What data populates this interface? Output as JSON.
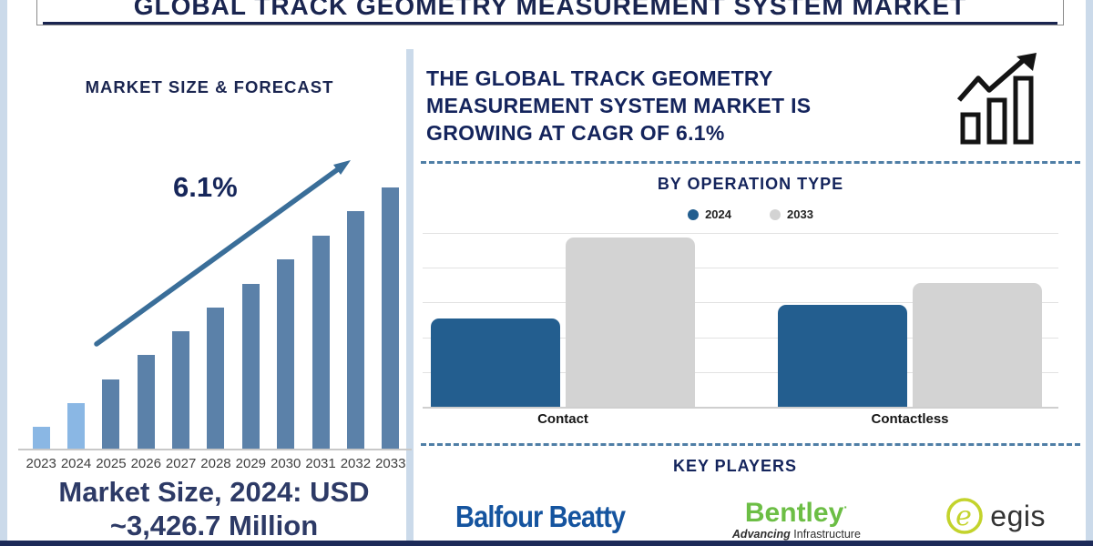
{
  "title_bar": {
    "title": "GLOBAL TRACK GEOMETRY MEASUREMENT SYSTEM MARKET"
  },
  "left_panel": {
    "heading": "MARKET SIZE & FORECAST",
    "cagr_annotation": "6.1%",
    "market_size_line1": "Market Size, 2024: USD",
    "market_size_line2": "~3,426.7 Million"
  },
  "right_panel": {
    "headline_lines": [
      "THE GLOBAL TRACK GEOMETRY",
      "MEASUREMENT SYSTEM MARKET IS",
      "GROWING AT CAGR OF 6.1%"
    ],
    "growth_icon": "growth-trend-bar-chart-icon",
    "operation_section_title": "BY OPERATION TYPE",
    "key_players_title": "KEY PLAYERS",
    "key_players": [
      {
        "name": "Balfour Beatty",
        "color": "#15549f"
      },
      {
        "name": "Bentley",
        "mark": "·",
        "tagline_bold": "Advancing",
        "tagline_regular": " Infrastructure",
        "color": "#6cbe45"
      },
      {
        "name": "egis",
        "icon": "egis-e-circle-icon",
        "color": "#c3d32c"
      }
    ]
  },
  "chart_data": [
    {
      "id": "market-size-forecast",
      "type": "bar",
      "title": "MARKET SIZE & FORECAST",
      "categories": [
        "2023",
        "2024",
        "2025",
        "2026",
        "2027",
        "2028",
        "2029",
        "2030",
        "2031",
        "2032",
        "2033"
      ],
      "values": [
        25,
        51,
        77,
        104,
        130,
        156,
        182,
        209,
        235,
        262,
        288
      ],
      "unit": "relative bar height px (no y-axis shown)",
      "bar_colors": [
        "#8ab7e4",
        "#8ab7e4",
        "#5b81a9",
        "#5b81a9",
        "#5b81a9",
        "#5b81a9",
        "#5b81a9",
        "#5b81a9",
        "#5b81a9",
        "#5b81a9",
        "#5b81a9"
      ],
      "annotation": "6.1%",
      "note": "Market Size, 2024: USD ~3,426.7 Million",
      "xlabel": "",
      "ylabel": "",
      "grid": false,
      "axes_labeled": false
    },
    {
      "id": "by-operation-type",
      "type": "bar",
      "title": "BY OPERATION TYPE",
      "categories": [
        "Contact",
        "Contactless"
      ],
      "series": [
        {
          "name": "2024",
          "color": "#235e8f",
          "values": [
            52,
            60
          ]
        },
        {
          "name": "2033",
          "color": "#d3d3d3",
          "values": [
            100,
            73
          ]
        }
      ],
      "unit": "relative (Contact 2033 = 100; no y-axis labels shown)",
      "grid": true,
      "legend_position": "top"
    }
  ],
  "colors": {
    "navy": "#1a2550",
    "steel_blue_bar": "#5b81a9",
    "light_blue_bar": "#8ab7e4",
    "op_blue": "#235e8f",
    "op_gray": "#d3d3d3",
    "dashed_separator": "#4f7ea6",
    "edge_strip": "#cbdaea",
    "bottom_bar": "#1c2a58",
    "arrow": "#3a6e99"
  }
}
